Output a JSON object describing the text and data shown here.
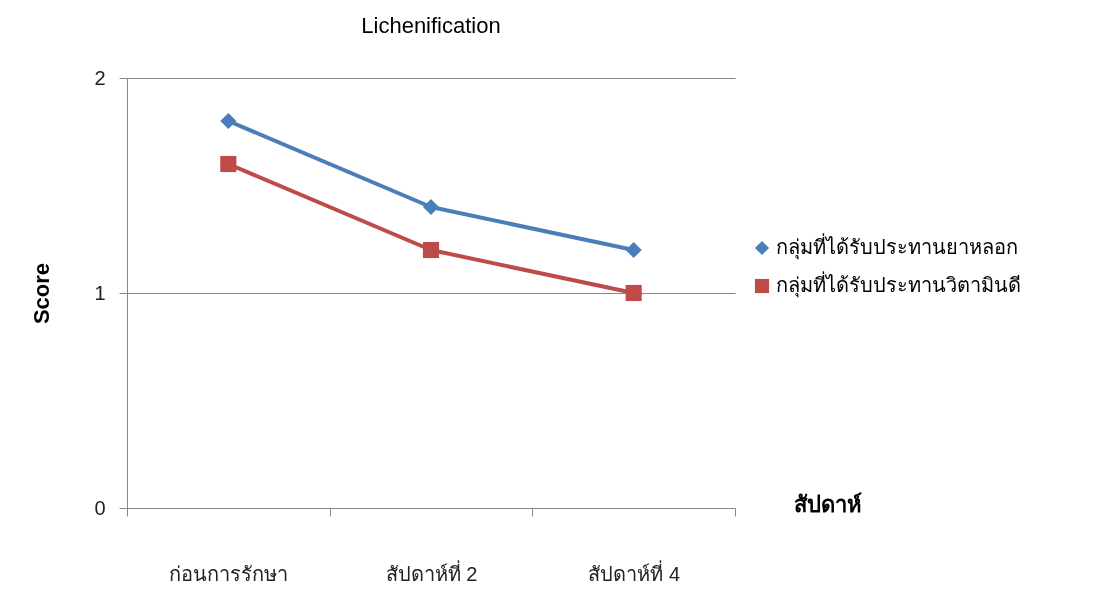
{
  "chart_data": {
    "type": "line",
    "title": "Lichenification",
    "xlabel": "สัปดาห์",
    "ylabel": "Score",
    "categories": [
      "ก่อนการรักษา",
      "สัปดาห์ที่ 2",
      "สัปดาห์ที่ 4"
    ],
    "series": [
      {
        "name": "กลุ่มที่ได้รับประทานยาหลอก",
        "color": "#4a7ebb",
        "marker": "diamond",
        "values": [
          1.8,
          1.4,
          1.2
        ]
      },
      {
        "name": "กลุ่มที่ได้รับประทานวิตามินดี",
        "color": "#be4b48",
        "marker": "square",
        "values": [
          1.6,
          1.2,
          1.0
        ]
      }
    ],
    "ylim": [
      0,
      2
    ],
    "yticks": [
      0,
      1,
      2
    ],
    "grid": "y",
    "legend": "right"
  }
}
